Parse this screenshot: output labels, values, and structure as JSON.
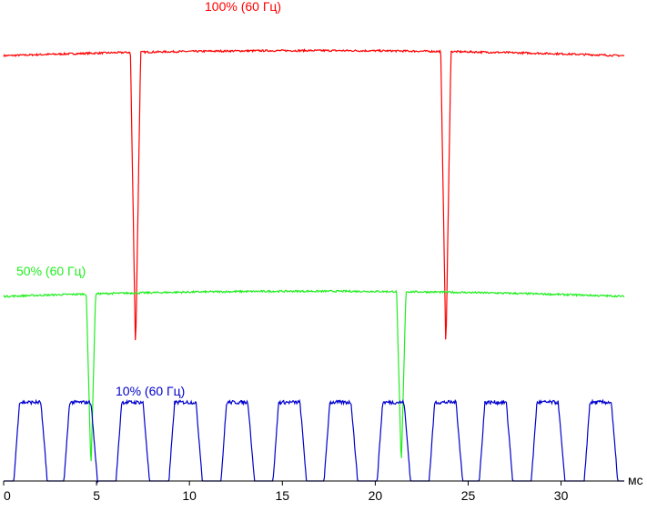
{
  "chart_data": {
    "type": "line",
    "xlabel": "мс",
    "xlim": [
      0,
      33.4
    ],
    "x_ticks": [
      "0",
      "5",
      "10",
      "15",
      "20",
      "25",
      "30"
    ],
    "x_tick_values": [
      0,
      5,
      10,
      15,
      20,
      25,
      30
    ],
    "grid": false,
    "series": [
      {
        "name": "100% (60 Гц)",
        "color": "#ff0000",
        "baseline": 0.93,
        "dips": [
          {
            "x": 7.1,
            "depth": 0.65
          },
          {
            "x": 23.8,
            "depth": 0.65
          }
        ],
        "dip_width_ms": 0.55
      },
      {
        "name": "50% (60 Гц)",
        "color": "#22ee22",
        "baseline": 0.41,
        "dips": [
          {
            "x": 4.7,
            "depth": 0.38
          },
          {
            "x": 21.4,
            "depth": 0.38
          }
        ],
        "dip_width_ms": 0.5
      },
      {
        "name": "10% (60 Гц)",
        "color": "#0000cc",
        "baseline": 0.0,
        "pulse_height": 0.17,
        "pulse_starts": [
          0.55,
          3.25,
          6.05,
          8.9,
          11.7,
          14.5,
          17.25,
          20.1,
          22.9,
          25.6,
          28.4,
          31.25
        ],
        "pulse_width_ms": 1.45
      }
    ]
  }
}
